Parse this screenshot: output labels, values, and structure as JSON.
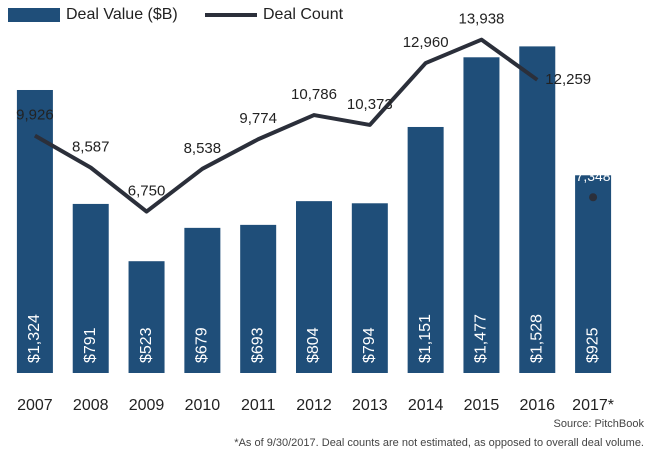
{
  "chart_data": {
    "type": "bar-line",
    "categories": [
      "2007",
      "2008",
      "2009",
      "2010",
      "2011",
      "2012",
      "2013",
      "2014",
      "2015",
      "2016",
      "2017*"
    ],
    "series": [
      {
        "name": "Deal Value ($B)",
        "color": "#1f4e79",
        "type": "bar",
        "values": [
          1324,
          791,
          523,
          679,
          693,
          804,
          794,
          1151,
          1477,
          1528,
          925
        ],
        "value_labels": [
          "$1,324",
          "$791",
          "$523",
          "$679",
          "$693",
          "$804",
          "$794",
          "$1,151",
          "$1,477",
          "$1,528",
          "$925"
        ]
      },
      {
        "name": "Deal Count",
        "color": "#2b2f3a",
        "type": "line",
        "axis": "y2",
        "values": [
          9926,
          8587,
          6750,
          8538,
          9774,
          10786,
          10373,
          12960,
          13938,
          12259,
          7348
        ],
        "value_labels": [
          "9,926",
          "8,587",
          "6,750",
          "8,538",
          "9,774",
          "10,786",
          "10,373",
          "12,960",
          "13,938",
          "12,259",
          "7,348"
        ]
      }
    ],
    "ylim": [
      0,
      1600
    ],
    "y2lim": [
      0,
      14300
    ],
    "source": "Source: PitchBook",
    "footnote": "*As of 9/30/2017. Deal counts are not estimated, as opposed to overall deal volume."
  }
}
